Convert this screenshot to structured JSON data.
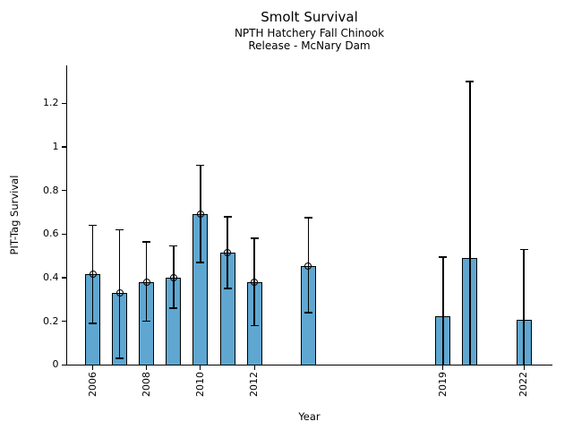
{
  "chart_data": {
    "type": "bar",
    "title": "Smolt Survival",
    "subtitle": [
      "NPTH Hatchery Fall Chinook",
      "Release - McNary Dam"
    ],
    "xlabel": "Year",
    "ylabel": "PIT-Tag Survival",
    "xlim": [
      2005.0,
      2023.1
    ],
    "ylim": [
      0,
      1.375
    ],
    "x_ticks": [
      2006,
      2008,
      2010,
      2012,
      2019,
      2022
    ],
    "y_ticks": [
      0,
      0.2,
      0.4,
      0.6,
      0.8,
      1,
      1.2
    ],
    "grid": false,
    "legend": false,
    "bar_color": "#5fa7d1",
    "bar_edge_color": "#000000",
    "errorbar_color": "#000000",
    "marker_style": "open-circle",
    "categories": [
      2006,
      2007,
      2008,
      2009,
      2010,
      2011,
      2012,
      2014,
      2019,
      2020,
      2022
    ],
    "values": [
      0.415,
      0.33,
      0.38,
      0.4,
      0.69,
      0.515,
      0.38,
      0.455,
      0.225,
      0.49,
      0.205
    ],
    "error_low": [
      0.19,
      0.03,
      0.2,
      0.26,
      0.47,
      0.35,
      0.18,
      0.24,
      0.0,
      0.0,
      0.0
    ],
    "error_high": [
      0.64,
      0.62,
      0.565,
      0.545,
      0.915,
      0.68,
      0.58,
      0.675,
      0.495,
      1.3,
      0.53
    ],
    "marker_shown": [
      true,
      true,
      true,
      true,
      true,
      true,
      true,
      true,
      false,
      false,
      false
    ]
  }
}
